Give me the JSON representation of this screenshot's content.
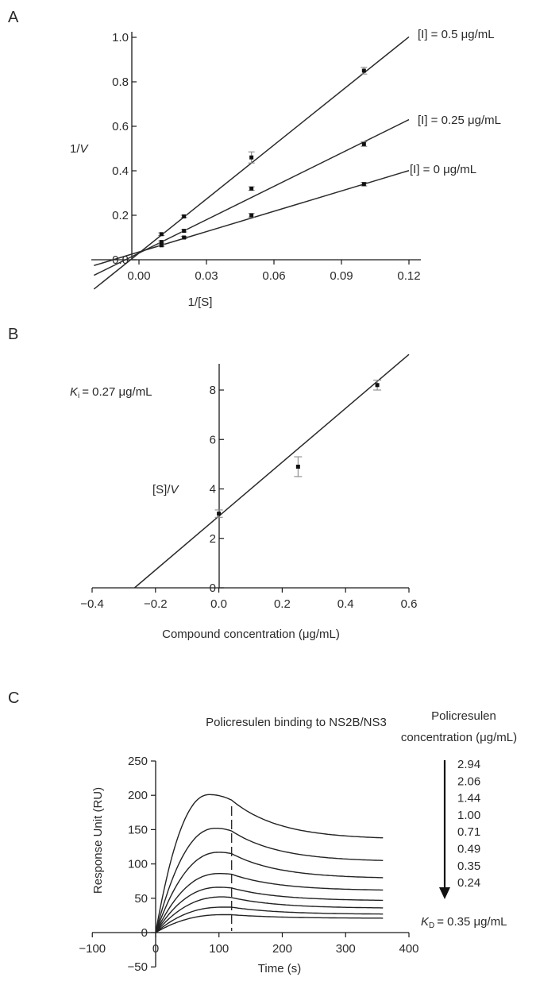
{
  "chart_data": [
    {
      "panel": "A",
      "type": "line",
      "title": "",
      "xlabel": "1/[S]",
      "ylabel": "1/V",
      "xlim": [
        -0.02,
        0.12
      ],
      "ylim": [
        0,
        1.0
      ],
      "xticks": [
        "0.00",
        "0.03",
        "0.06",
        "0.09",
        "0.12"
      ],
      "yticks": [
        "0.0",
        "0.2",
        "0.4",
        "0.6",
        "0.8",
        "1.0"
      ],
      "series": [
        {
          "name": "[I] = 0.5 μg/mL",
          "x": [
            0.01,
            0.02,
            0.05,
            0.1
          ],
          "y": [
            0.115,
            0.195,
            0.46,
            0.85
          ],
          "err": [
            0.006,
            0.005,
            0.025,
            0.015
          ],
          "fit": {
            "slope": 8.1,
            "intercept": 0.03
          }
        },
        {
          "name": "[I] = 0.25 μg/mL",
          "x": [
            0.01,
            0.02,
            0.05,
            0.1
          ],
          "y": [
            0.08,
            0.13,
            0.32,
            0.52
          ],
          "err": [
            0.005,
            0.005,
            0.008,
            0.01
          ],
          "fit": {
            "slope": 5.0,
            "intercept": 0.03
          }
        },
        {
          "name": "[I] = 0 μg/mL",
          "x": [
            0.01,
            0.02,
            0.05,
            0.1
          ],
          "y": [
            0.065,
            0.1,
            0.2,
            0.34
          ],
          "err": [
            0.005,
            0.005,
            0.008,
            0.008
          ],
          "fit": {
            "slope": 3.05,
            "intercept": 0.035
          }
        }
      ]
    },
    {
      "panel": "B",
      "type": "scatter",
      "title": "",
      "xlabel": "Compound concentration (μg/mL)",
      "ylabel": "[S]/V",
      "xlim": [
        -0.4,
        0.6
      ],
      "ylim": [
        0,
        9
      ],
      "xticks": [
        "−0.4",
        "−0.2",
        "0.0",
        "0.2",
        "0.4",
        "0.6"
      ],
      "yticks": [
        "0",
        "2",
        "4",
        "6",
        "8"
      ],
      "annotation": "= 0.27 μg/mL",
      "annotation_var": "K",
      "annotation_sub": "i",
      "series": [
        {
          "x": [
            0,
            0.25,
            0.5
          ],
          "y": [
            3.0,
            4.9,
            8.2
          ],
          "err": [
            0.15,
            0.4,
            0.2
          ],
          "fit": {
            "slope": 10.9,
            "intercept": 2.9
          }
        }
      ]
    },
    {
      "panel": "C",
      "type": "line",
      "title": "Policresulen binding to NS2B/NS3",
      "xlabel": "Time (s)",
      "ylabel": "Response Unit (RU)",
      "xlim": [
        -100,
        400
      ],
      "ylim": [
        -50,
        250
      ],
      "xticks": [
        "−100",
        "0",
        "100",
        "200",
        "300",
        "400"
      ],
      "yticks": [
        "−50",
        "0",
        "50",
        "100",
        "150",
        "200",
        "250"
      ],
      "injection_end": 120,
      "legend_title": [
        "Policresulen",
        "concentration (μg/mL)"
      ],
      "kd_var": "K",
      "kd_sub": "D",
      "kd_text": "= 0.35 μg/mL",
      "series": [
        {
          "name": "2.94",
          "peak": 201,
          "t_peak": 85,
          "end_value": 193,
          "final": 138
        },
        {
          "name": "2.06",
          "peak": 152,
          "t_peak": 95,
          "end_value": 148,
          "final": 105
        },
        {
          "name": "1.44",
          "peak": 117,
          "t_peak": 100,
          "end_value": 115,
          "final": 80
        },
        {
          "name": "1.00",
          "peak": 86,
          "t_peak": 100,
          "end_value": 85,
          "final": 62
        },
        {
          "name": "0.71",
          "peak": 66,
          "t_peak": 100,
          "end_value": 65,
          "final": 47
        },
        {
          "name": "0.49",
          "peak": 52,
          "t_peak": 105,
          "end_value": 51,
          "final": 36
        },
        {
          "name": "0.35",
          "peak": 37,
          "t_peak": 105,
          "end_value": 37,
          "final": 27
        },
        {
          "name": "0.24",
          "peak": 26,
          "t_peak": 105,
          "end_value": 26,
          "final": 21
        }
      ]
    }
  ],
  "labels": {
    "panel_a": "A",
    "panel_b": "B",
    "panel_c": "C",
    "ylabel_a_suffix": "V",
    "ylabel_b_suffix": "V"
  }
}
